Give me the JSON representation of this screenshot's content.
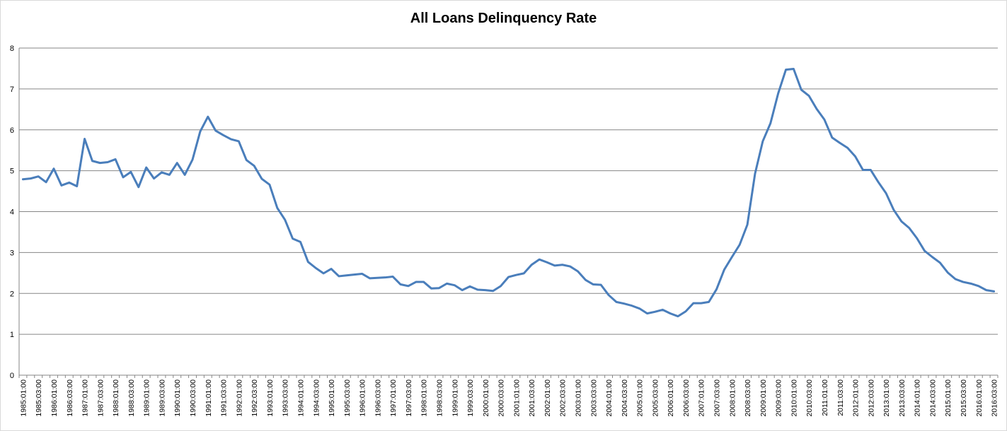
{
  "chart_data": {
    "type": "line",
    "title": "All Loans Delinquency Rate",
    "xlabel": "",
    "ylabel": "",
    "ylim": [
      0,
      8
    ],
    "yticks": [
      "0",
      "1",
      "2",
      "3",
      "4",
      "5",
      "6",
      "7",
      "8"
    ],
    "grid": true,
    "legend": "none",
    "x": [
      "1985:01:00",
      "1985:02:00",
      "1985:03:00",
      "1985:04:00",
      "1986:01:00",
      "1986:02:00",
      "1986:03:00",
      "1986:04:00",
      "1987:01:00",
      "1987:02:00",
      "1987:03:00",
      "1987:04:00",
      "1988:01:00",
      "1988:02:00",
      "1988:03:00",
      "1988:04:00",
      "1989:01:00",
      "1989:02:00",
      "1989:03:00",
      "1989:04:00",
      "1990:01:00",
      "1990:02:00",
      "1990:03:00",
      "1990:04:00",
      "1991:01:00",
      "1991:02:00",
      "1991:03:00",
      "1991:04:00",
      "1992:01:00",
      "1992:02:00",
      "1992:03:00",
      "1992:04:00",
      "1993:01:00",
      "1993:02:00",
      "1993:03:00",
      "1993:04:00",
      "1994:01:00",
      "1994:02:00",
      "1994:03:00",
      "1994:04:00",
      "1995:01:00",
      "1995:02:00",
      "1995:03:00",
      "1995:04:00",
      "1996:01:00",
      "1996:02:00",
      "1996:03:00",
      "1996:04:00",
      "1997:01:00",
      "1997:02:00",
      "1997:03:00",
      "1997:04:00",
      "1998:01:00",
      "1998:02:00",
      "1998:03:00",
      "1998:04:00",
      "1999:01:00",
      "1999:02:00",
      "1999:03:00",
      "1999:04:00",
      "2000:01:00",
      "2000:02:00",
      "2000:03:00",
      "2000:04:00",
      "2001:01:00",
      "2001:02:00",
      "2001:03:00",
      "2001:04:00",
      "2002:01:00",
      "2002:02:00",
      "2002:03:00",
      "2002:04:00",
      "2003:01:00",
      "2003:02:00",
      "2003:03:00",
      "2003:04:00",
      "2004:01:00",
      "2004:02:00",
      "2004:03:00",
      "2004:04:00",
      "2005:01:00",
      "2005:02:00",
      "2005:03:00",
      "2005:04:00",
      "2006:01:00",
      "2006:02:00",
      "2006:03:00",
      "2006:04:00",
      "2007:01:00",
      "2007:02:00",
      "2007:03:00",
      "2007:04:00",
      "2008:01:00",
      "2008:02:00",
      "2008:03:00",
      "2008:04:00",
      "2009:01:00",
      "2009:02:00",
      "2009:03:00",
      "2009:04:00",
      "2010:01:00",
      "2010:02:00",
      "2010:03:00",
      "2010:04:00",
      "2011:01:00",
      "2011:02:00",
      "2011:03:00",
      "2011:04:00",
      "2012:01:00",
      "2012:02:00",
      "2012:03:00",
      "2012:04:00",
      "2013:01:00",
      "2013:02:00",
      "2013:03:00",
      "2013:04:00",
      "2014:01:00",
      "2014:02:00",
      "2014:03:00",
      "2014:04:00",
      "2015:01:00",
      "2015:02:00",
      "2015:03:00",
      "2015:04:00",
      "2016:01:00",
      "2016:02:00",
      "2016:03:00"
    ],
    "x_tick_labels": [
      "1985:01:00",
      "1985:03:00",
      "1986:01:00",
      "1986:03:00",
      "1987:01:00",
      "1987:03:00",
      "1988:01:00",
      "1988:03:00",
      "1989:01:00",
      "1989:03:00",
      "1990:01:00",
      "1990:03:00",
      "1991:01:00",
      "1991:03:00",
      "1992:01:00",
      "1992:03:00",
      "1993:01:00",
      "1993:03:00",
      "1994:01:00",
      "1994:03:00",
      "1995:01:00",
      "1995:03:00",
      "1996:01:00",
      "1996:03:00",
      "1997:01:00",
      "1997:03:00",
      "1998:01:00",
      "1998:03:00",
      "1999:01:00",
      "1999:03:00",
      "2000:01:00",
      "2000:03:00",
      "2001:01:00",
      "2001:03:00",
      "2002:01:00",
      "2002:03:00",
      "2003:01:00",
      "2003:03:00",
      "2004:01:00",
      "2004:03:00",
      "2005:01:00",
      "2005:03:00",
      "2006:01:00",
      "2006:03:00",
      "2007:01:00",
      "2007:03:00",
      "2008:01:00",
      "2008:03:00",
      "2009:01:00",
      "2009:03:00",
      "2010:01:00",
      "2010:03:00",
      "2011:01:00",
      "2011:03:00",
      "2012:01:00",
      "2012:03:00",
      "2013:01:00",
      "2013:03:00",
      "2014:01:00",
      "2014:03:00",
      "2015:01:00",
      "2015:03:00",
      "2016:01:00",
      "2016:03:00"
    ],
    "series": [
      {
        "name": "",
        "color": "#4a7ebb",
        "values": [
          4.79,
          4.81,
          4.86,
          4.72,
          5.05,
          4.64,
          4.71,
          4.62,
          5.78,
          5.24,
          5.19,
          5.21,
          5.28,
          4.84,
          4.97,
          4.6,
          5.08,
          4.81,
          4.96,
          4.9,
          5.19,
          4.9,
          5.27,
          5.96,
          6.32,
          5.98,
          5.87,
          5.77,
          5.72,
          5.26,
          5.12,
          4.8,
          4.66,
          4.09,
          3.8,
          3.34,
          3.26,
          2.77,
          2.62,
          2.49,
          2.6,
          2.42,
          2.44,
          2.46,
          2.48,
          2.37,
          2.38,
          2.39,
          2.41,
          2.22,
          2.18,
          2.28,
          2.28,
          2.12,
          2.13,
          2.24,
          2.2,
          2.08,
          2.17,
          2.09,
          2.08,
          2.06,
          2.18,
          2.4,
          2.45,
          2.49,
          2.7,
          2.83,
          2.76,
          2.68,
          2.7,
          2.66,
          2.54,
          2.33,
          2.22,
          2.21,
          1.96,
          1.79,
          1.75,
          1.7,
          1.63,
          1.51,
          1.55,
          1.6,
          1.51,
          1.44,
          1.56,
          1.76,
          1.76,
          1.79,
          2.1,
          2.58,
          2.89,
          3.19,
          3.68,
          4.93,
          5.72,
          6.16,
          6.89,
          7.47,
          7.49,
          6.98,
          6.83,
          6.51,
          6.25,
          5.81,
          5.68,
          5.56,
          5.35,
          5.02,
          5.02,
          4.72,
          4.45,
          4.04,
          3.76,
          3.6,
          3.35,
          3.04,
          2.89,
          2.75,
          2.51,
          2.35,
          2.28,
          2.24,
          2.18,
          2.08,
          2.05
        ]
      }
    ]
  }
}
